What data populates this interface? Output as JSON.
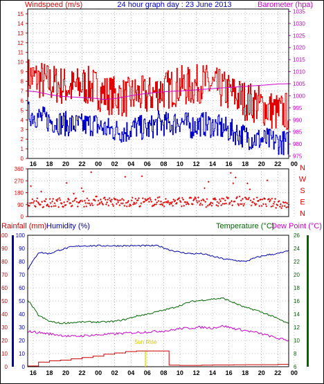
{
  "colors": {
    "wind_speed": "#e00000",
    "gust": "#e00000",
    "wind_avg": "#0000cc",
    "barometer": "#cc00cc",
    "wind_dir": "#e00000",
    "rain": "#cc0000",
    "humidity": "#0000aa",
    "temperature": "#006600",
    "dew_point": "#cc00cc",
    "sunrise": "#e6e600",
    "grid": "#8a8a8a"
  },
  "chart_data": [
    {
      "type": "line",
      "title": "24 hour graph day : 23 June 2013",
      "ylabel_left": "Windspeed (m/s)",
      "ylabel_right": "Barometer (hpa)",
      "yticks_left": [
        "0",
        "1",
        "2",
        "3",
        "4",
        "5",
        "6",
        "7",
        "8",
        "9",
        "10",
        "11",
        "12",
        "13",
        "14",
        "15"
      ],
      "yticks_right": [
        "975",
        "980",
        "985",
        "990",
        "995",
        "1000",
        "1005",
        "1010",
        "1015",
        "1020",
        "1025",
        "1030",
        "1035"
      ],
      "xticks": [
        "16",
        "18",
        "20",
        "22",
        "00",
        "02",
        "04",
        "06",
        "08",
        "10",
        "12",
        "14",
        "16",
        "18",
        "20",
        "22",
        "00"
      ],
      "ylim_left": [
        0,
        15.5
      ],
      "ylim_right": [
        974,
        1036
      ],
      "x_hours": [
        0,
        1,
        2,
        3,
        4,
        5,
        6,
        7,
        8,
        9,
        10,
        11,
        12,
        13,
        14,
        15,
        16,
        17,
        18,
        19,
        20,
        21,
        22,
        23,
        24
      ],
      "series": [
        {
          "name": "Windspeed",
          "values": [
            8.5,
            8.2,
            7.8,
            7.6,
            7.3,
            7.6,
            7.4,
            6.7,
            6.5,
            6.3,
            6.6,
            6.4,
            7.0,
            7.2,
            7.6,
            7.4,
            7.9,
            7.5,
            7.1,
            6.6,
            6.0,
            5.7,
            5.2,
            4.7,
            4.9
          ]
        },
        {
          "name": "Windspeed avg",
          "values": [
            4.7,
            4.3,
            3.9,
            3.7,
            3.5,
            3.4,
            3.6,
            3.1,
            2.9,
            2.8,
            3.3,
            3.0,
            3.7,
            3.5,
            3.9,
            3.3,
            3.6,
            3.4,
            3.1,
            2.7,
            2.3,
            2.0,
            1.9,
            1.7,
            1.6
          ]
        },
        {
          "name": "Barometer",
          "values": [
            1002,
            1001.5,
            1000.5,
            999.8,
            999.5,
            999.3,
            999.0,
            998.5,
            998.8,
            999.6,
            1000.4,
            1001,
            1001.5,
            1001.8,
            1002,
            1002.3,
            1002.6,
            1003,
            1003.3,
            1003.6,
            1003.9,
            1004.2,
            1004.5,
            1004.9,
            1005
          ]
        }
      ]
    },
    {
      "type": "scatter",
      "ylabel_right": "N W S E N",
      "compass": [
        "N",
        "W",
        "S",
        "E",
        "N"
      ],
      "yticks": [
        "0",
        "90",
        "180",
        "270",
        "360"
      ],
      "ylim": [
        0,
        360
      ],
      "x_hours": [
        0,
        1,
        2,
        3,
        4,
        5,
        6,
        7,
        8,
        9,
        10,
        11,
        12,
        13,
        14,
        15,
        16,
        17,
        18,
        19,
        20,
        21,
        22,
        23,
        24
      ],
      "series": [
        {
          "name": "Wind direction",
          "values": [
            112,
            104,
            100,
            108,
            110,
            104,
            118,
            122,
            106,
            110,
            112,
            108,
            115,
            104,
            112,
            114,
            108,
            104,
            112,
            118,
            114,
            110,
            105,
            98,
            95
          ]
        }
      ]
    },
    {
      "type": "line",
      "ylabel_left": "Rainfall (mm)",
      "ylabel_left2": "Humidity (%)",
      "ylabel_right": "Temperature (°C)",
      "ylabel_right2": "Dew Point (°C)",
      "yticks_left": [
        "0",
        "10",
        "20",
        "30",
        "40",
        "50",
        "60",
        "70",
        "80",
        "90",
        "100"
      ],
      "yticks_right": [
        "6",
        "8",
        "10",
        "12",
        "14",
        "16",
        "18",
        "20",
        "22",
        "24",
        "26"
      ],
      "xticks": [
        "16",
        "18",
        "20",
        "22",
        "00",
        "02",
        "04",
        "06",
        "08",
        "10",
        "12",
        "14",
        "16",
        "18",
        "20",
        "22",
        "00"
      ],
      "ylim_left": [
        0,
        100
      ],
      "ylim_right": [
        6,
        26
      ],
      "annotation": "Sun Rise",
      "x_hours": [
        0,
        1,
        2,
        3,
        4,
        5,
        6,
        7,
        8,
        9,
        10,
        11,
        12,
        13,
        14,
        15,
        16,
        17,
        18,
        19,
        20,
        21,
        22,
        23,
        24
      ],
      "series": [
        {
          "name": "Humidity",
          "values": [
            74,
            87,
            86,
            89,
            91,
            92,
            92,
            92,
            92,
            92,
            92,
            92,
            92,
            89,
            87,
            86,
            86,
            84,
            82,
            81,
            80,
            83,
            85,
            86,
            88
          ]
        },
        {
          "name": "Temperature",
          "values": [
            16.2,
            13.8,
            12.9,
            12.6,
            12.7,
            12.8,
            12.8,
            12.8,
            12.9,
            13.2,
            13.7,
            14.0,
            14.4,
            14.8,
            15.3,
            15.9,
            16.1,
            16.3,
            16.4,
            15.7,
            15.0,
            14.6,
            14.0,
            13.3,
            12.5
          ]
        },
        {
          "name": "Dew Point",
          "values": [
            11.4,
            11.2,
            11.0,
            10.8,
            10.6,
            10.7,
            10.8,
            10.9,
            11.0,
            11.1,
            11.2,
            11.3,
            11.4,
            11.5,
            11.8,
            11.9,
            12.0,
            11.9,
            12.2,
            11.8,
            11.5,
            11.2,
            10.8,
            10.3,
            10.0
          ]
        },
        {
          "name": "Rainfall",
          "values": [
            0.5,
            3.5,
            4.5,
            5.0,
            6.0,
            7.0,
            8.0,
            9.5,
            10.5,
            11.5,
            12.0,
            12.0,
            12.0,
            1.2,
            1.0,
            1.0,
            1.2,
            1.3,
            1.3,
            1.4,
            1.5,
            1.5,
            1.5,
            1.8,
            5.0
          ]
        }
      ]
    }
  ]
}
